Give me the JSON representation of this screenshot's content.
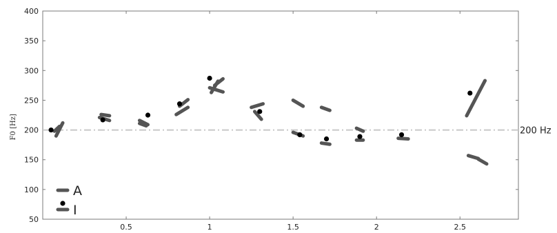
{
  "chart_data": {
    "type": "scatter",
    "title": "",
    "xlabel": "",
    "ylabel": "F0 [Hz]",
    "xlim": [
      0,
      2.85
    ],
    "ylim": [
      50,
      400
    ],
    "x_ticks": [
      "0.5",
      "1",
      "1.5",
      "2",
      "2.5"
    ],
    "x_tick_values": [
      0.5,
      1,
      1.5,
      2,
      2.5
    ],
    "y_ticks": [
      "50",
      "100",
      "150",
      "200",
      "250",
      "300",
      "350",
      "400"
    ],
    "y_tick_values": [
      50,
      100,
      150,
      200,
      250,
      300,
      350,
      400
    ],
    "grid": false,
    "legend_position": "bottom-left",
    "reference_line": {
      "y": 200,
      "label": "200 Hz"
    },
    "series": [
      {
        "name": "A",
        "marker": "line-segment",
        "color": "#555555",
        "segments": [
          [
            [
              0.08,
              190
            ],
            [
              0.12,
              212
            ]
          ],
          [
            [
              0.07,
              198
            ],
            [
              0.1,
              206
            ]
          ],
          [
            [
              0.34,
              221
            ],
            [
              0.4,
              216
            ]
          ],
          [
            [
              0.35,
              226
            ],
            [
              0.4,
              224
            ]
          ],
          [
            [
              0.58,
              216
            ],
            [
              0.63,
              209
            ]
          ],
          [
            [
              0.58,
              211
            ],
            [
              0.62,
              207
            ]
          ],
          [
            [
              0.8,
              226
            ],
            [
              0.87,
              238
            ]
          ],
          [
            [
              0.82,
              240
            ],
            [
              0.87,
              251
            ]
          ],
          [
            [
              1.01,
              263
            ],
            [
              1.05,
              282
            ]
          ],
          [
            [
              1.03,
              275
            ],
            [
              1.08,
              286
            ]
          ],
          [
            [
              1.0,
              271
            ],
            [
              1.08,
              264
            ]
          ],
          [
            [
              1.25,
              238
            ],
            [
              1.32,
              244
            ]
          ],
          [
            [
              1.27,
              231
            ],
            [
              1.31,
              218
            ]
          ],
          [
            [
              1.5,
              250
            ],
            [
              1.56,
              240
            ]
          ],
          [
            [
              1.5,
              196
            ],
            [
              1.56,
              190
            ]
          ],
          [
            [
              1.67,
              238
            ],
            [
              1.72,
              233
            ]
          ],
          [
            [
              1.67,
              178
            ],
            [
              1.72,
              176
            ]
          ],
          [
            [
              1.88,
              203
            ],
            [
              1.92,
              198
            ]
          ],
          [
            [
              1.88,
              183
            ],
            [
              1.92,
              183
            ]
          ],
          [
            [
              2.13,
              186
            ],
            [
              2.19,
              185
            ]
          ],
          [
            [
              2.54,
              224
            ],
            [
              2.65,
              283
            ]
          ],
          [
            [
              2.55,
              157
            ],
            [
              2.61,
              152
            ]
          ],
          [
            [
              2.61,
              151
            ],
            [
              2.66,
              143
            ]
          ]
        ]
      },
      {
        "name": "I",
        "marker": "dot",
        "color": "#000000",
        "x": [
          0.05,
          0.36,
          0.63,
          0.82,
          1.0,
          1.3,
          1.54,
          1.7,
          1.9,
          2.15,
          2.56
        ],
        "y": [
          200,
          217,
          225,
          244,
          287,
          231,
          192,
          185,
          189,
          192,
          262
        ]
      }
    ]
  }
}
